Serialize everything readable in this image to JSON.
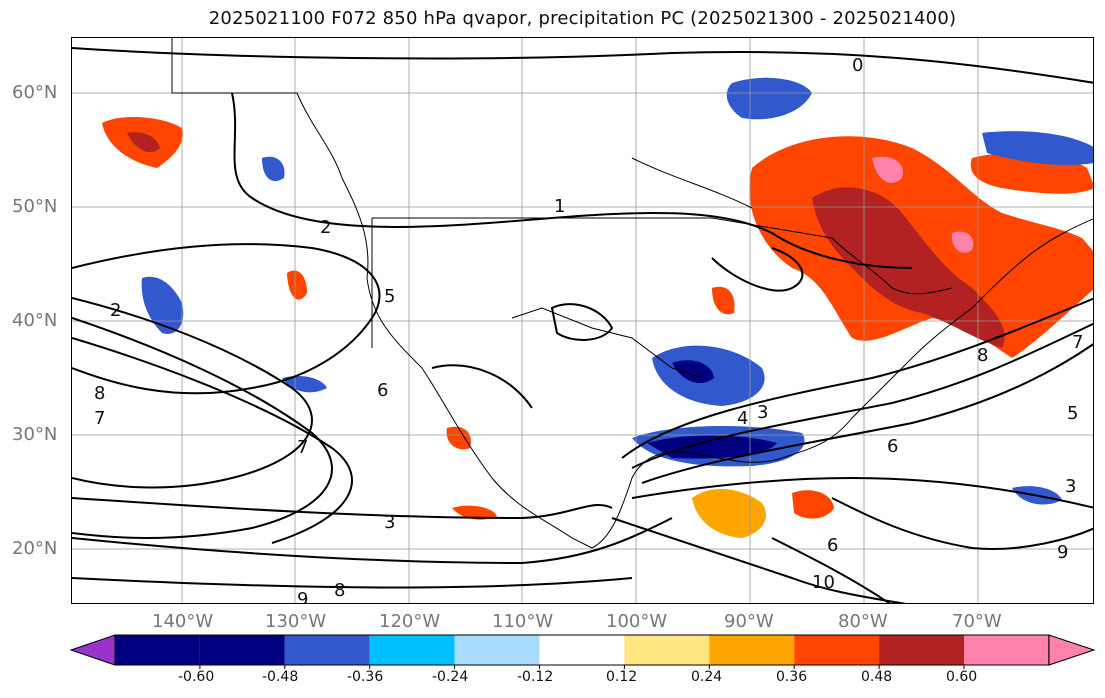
{
  "title": "2025021100 F072 850 hPa qvapor, precipitation PC (2025021300 - 2025021400)",
  "lat_labels": [
    "60°N",
    "50°N",
    "40°N",
    "30°N",
    "20°N"
  ],
  "lon_labels": [
    "140°W",
    "130°W",
    "120°W",
    "110°W",
    "100°W",
    "90°W",
    "80°W",
    "70°W"
  ],
  "colorbar": {
    "colors": [
      "#9933cc",
      "#000080",
      "#3158cc",
      "#00bfff",
      "#a8dcff",
      "#ffffff",
      "#ffe680",
      "#ffa500",
      "#ff4500",
      "#b22222",
      "#ff82ab"
    ],
    "ticks": [
      "-0.60",
      "-0.48",
      "-0.36",
      "-0.24",
      "-0.12",
      "0.12",
      "0.24",
      "0.36",
      "0.48",
      "0.60"
    ]
  },
  "contour_labels": [
    "0",
    "1",
    "2",
    "2",
    "3",
    "3",
    "4",
    "5",
    "6",
    "6",
    "7",
    "7",
    "8",
    "8",
    "9",
    "10",
    "3",
    "5",
    "6",
    "7",
    "8",
    "9"
  ],
  "colors": {
    "frame": "#000000",
    "coast": "#000000",
    "grid": "#999999",
    "axis_label": "#777777"
  }
}
